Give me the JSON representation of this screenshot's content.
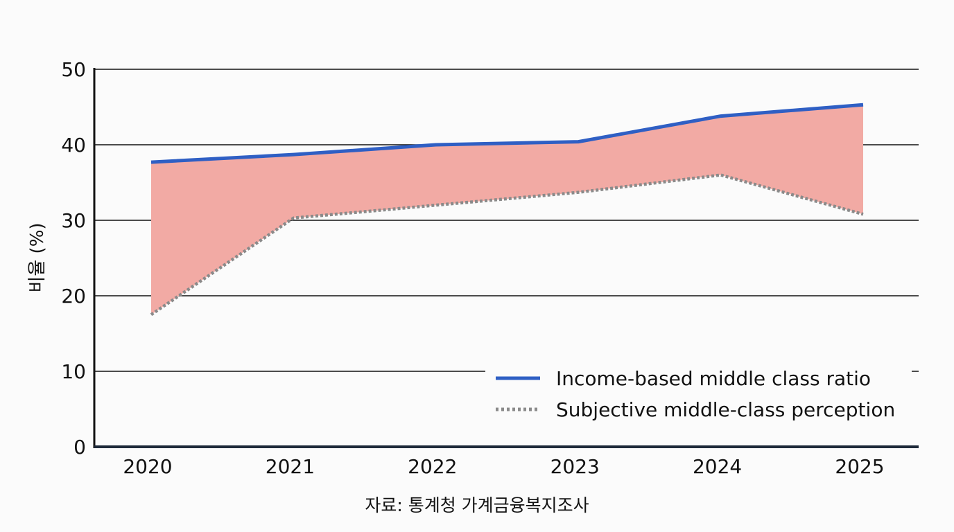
{
  "chart_data": {
    "type": "area",
    "x": [
      "2020",
      "2021",
      "2022",
      "2023",
      "2024",
      "2025"
    ],
    "series": [
      {
        "name": "Income-based middle class ratio",
        "values": [
          37.7,
          38.7,
          40.0,
          40.4,
          43.8,
          45.3
        ],
        "color": "#2f5fc4",
        "style": "solid"
      },
      {
        "name": "Subjective middle-class perception",
        "values": [
          17.5,
          30.3,
          32.0,
          33.7,
          36.0,
          30.8
        ],
        "color": "#8a8a8a",
        "style": "dotted"
      }
    ],
    "fill_between_color": "#f2aaa4",
    "ylabel": "비율 (%)",
    "ylim": [
      0,
      50
    ],
    "yticks": [
      0,
      10,
      20,
      30,
      40,
      50
    ],
    "grid": true,
    "legend_position": "bottom-right",
    "source": "자료: 통계청 가계금융복지조사"
  }
}
